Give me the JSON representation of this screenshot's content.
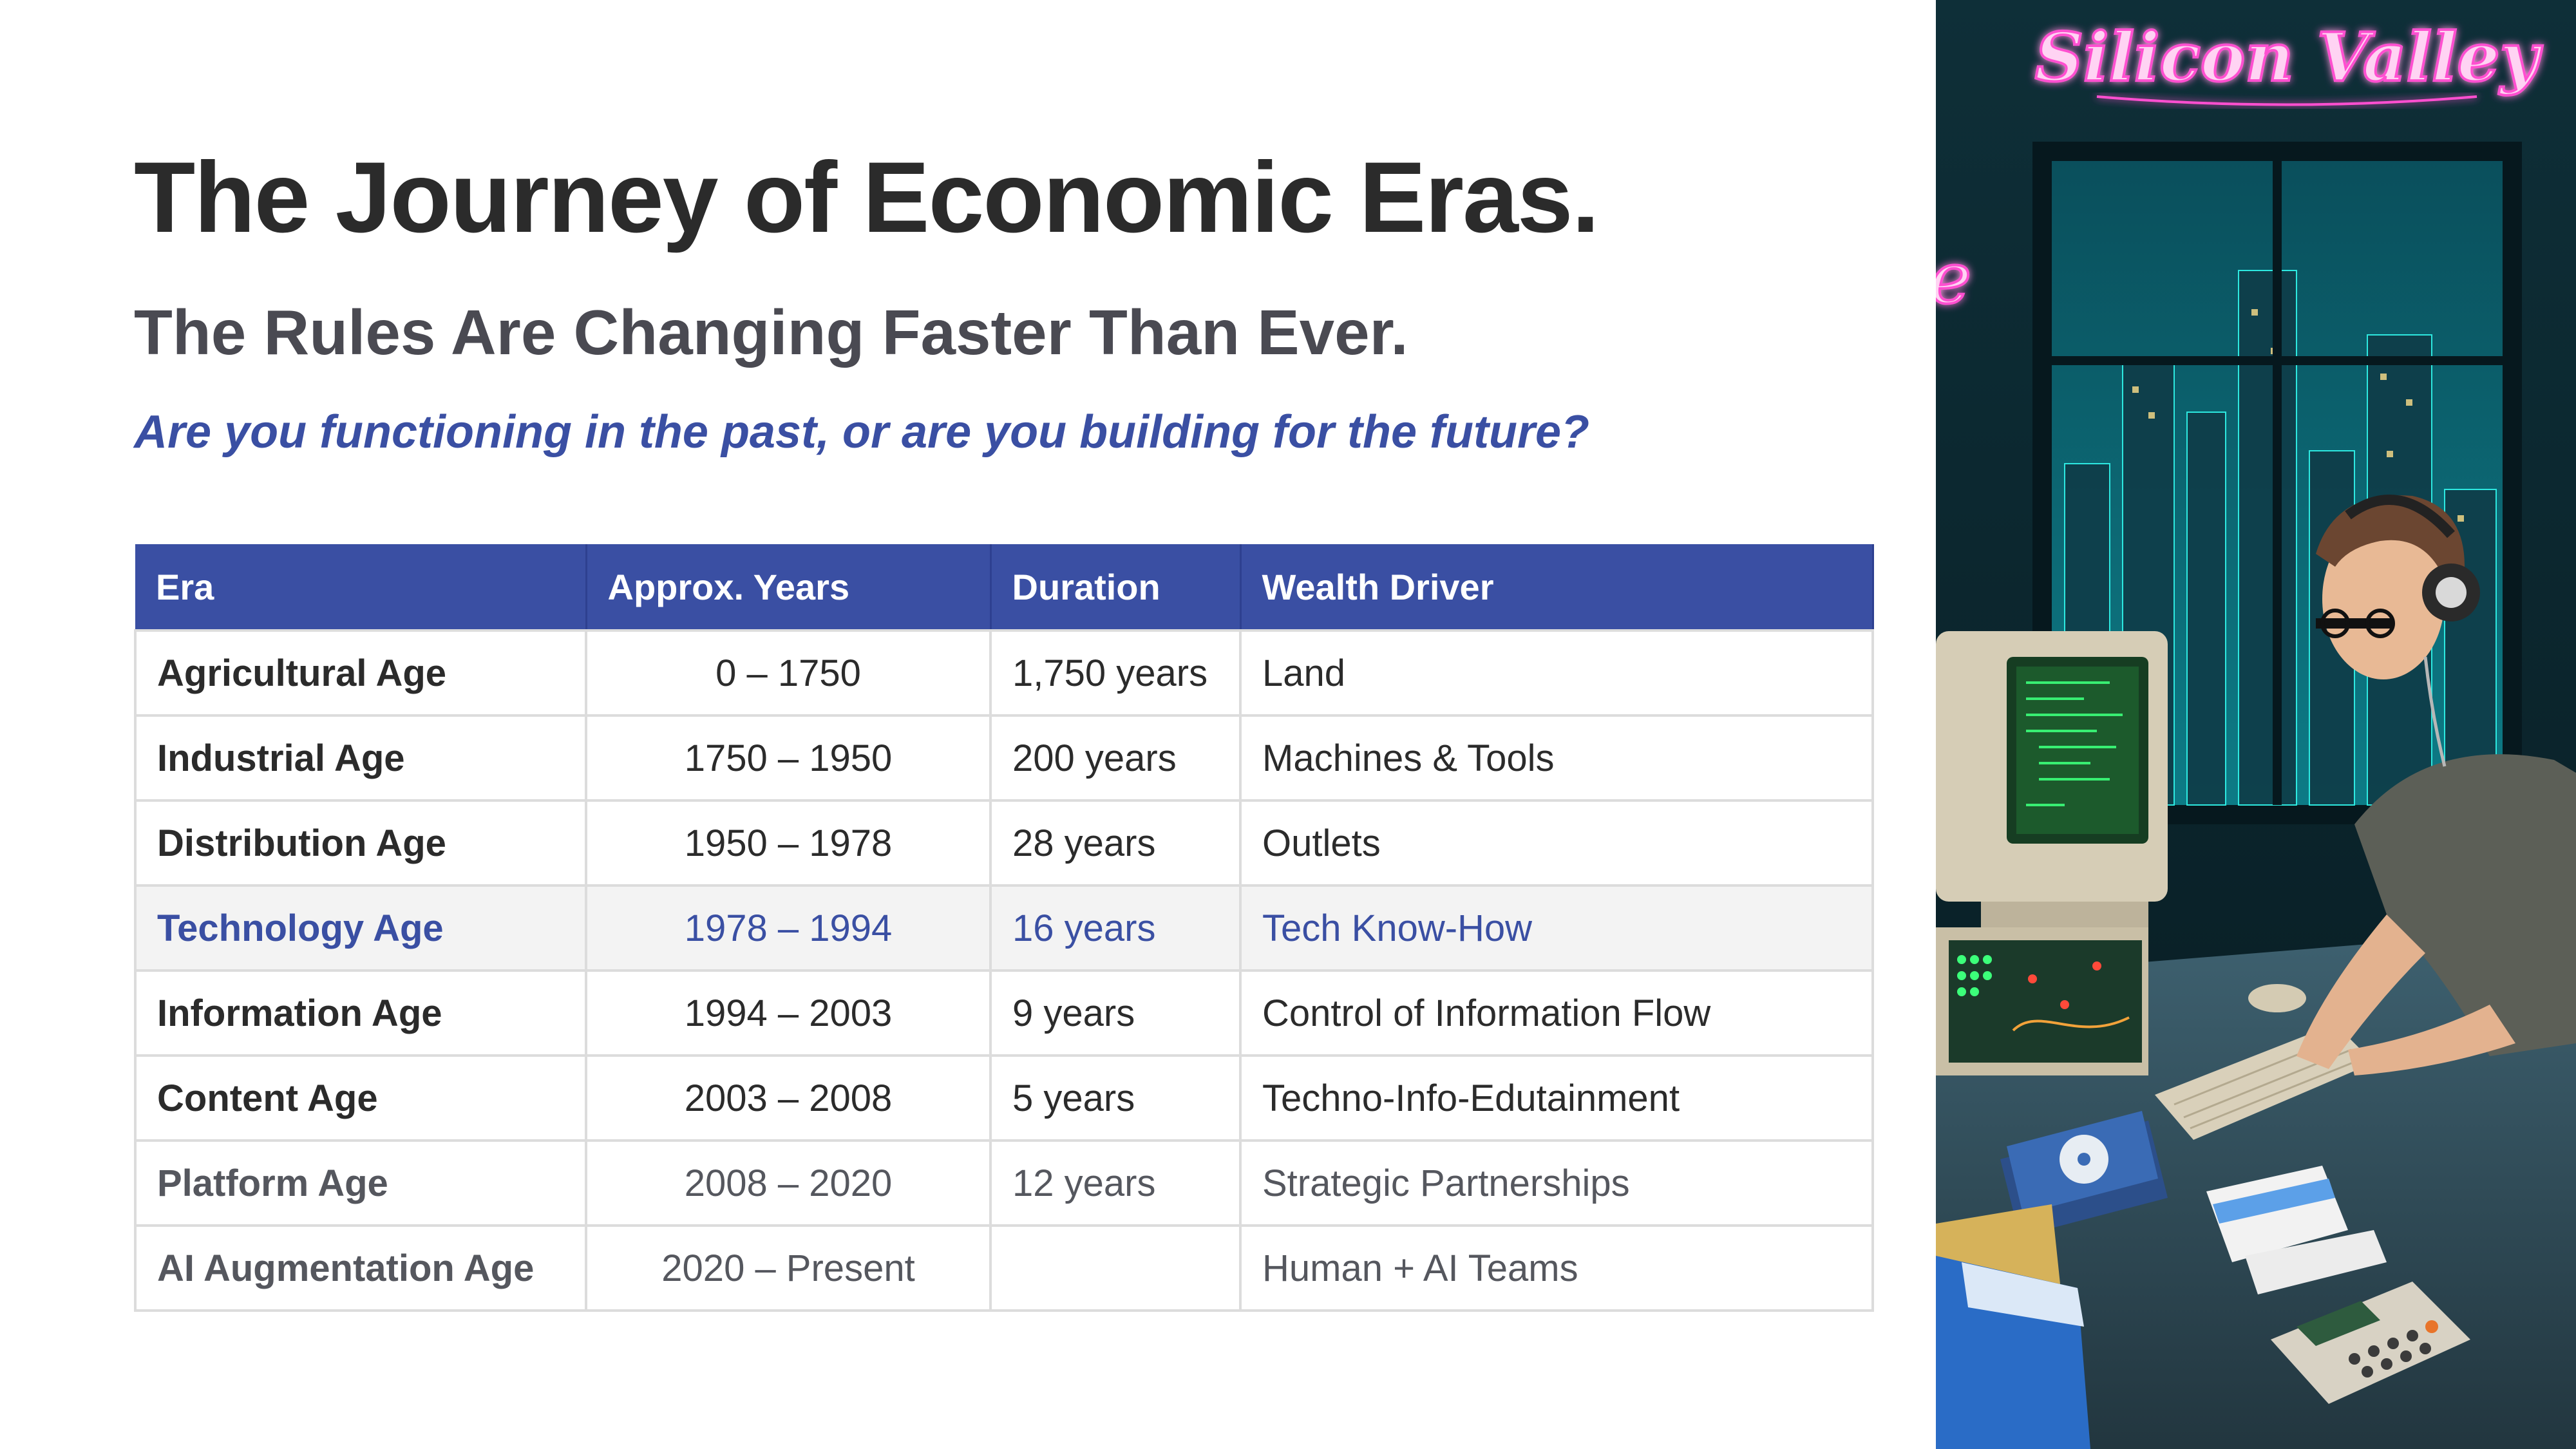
{
  "slide": {
    "title": "The Journey of Economic Eras.",
    "subtitle": "The Rules Are Changing Faster Than Ever.",
    "tagline": "Are you functioning in the past, or are you building for the future?"
  },
  "table": {
    "headers": [
      "Era",
      "Approx.  Years",
      "Duration",
      "Wealth  Driver"
    ],
    "rows": [
      {
        "era": "Agricultural Age",
        "years": "0 – 1750",
        "duration": "1,750 years",
        "driver": "Land"
      },
      {
        "era": "Industrial Age",
        "years": "1750 – 1950",
        "duration": "200 years",
        "driver": "Machines & Tools"
      },
      {
        "era": "Distribution Age",
        "years": "1950 – 1978",
        "duration": "28 years",
        "driver": "Outlets"
      },
      {
        "era": "Technology Age",
        "years": "1978 – 1994",
        "duration": "16 years",
        "driver": "Tech Know-How"
      },
      {
        "era": "Information Age",
        "years": "1994 – 2003",
        "duration": "9 years",
        "driver": "Control of Information Flow"
      },
      {
        "era": "Content Age",
        "years": "2003 – 2008",
        "duration": "5 years",
        "driver": "Techno-Info-Edutainment"
      },
      {
        "era": "Platform Age",
        "years": "2008 – 2020",
        "duration": "12 years",
        "driver": "Strategic Partnerships"
      },
      {
        "era": "AI Augmentation Age",
        "years": "2020 – Present",
        "duration": "",
        "driver": "Human + AI Teams"
      }
    ]
  },
  "illustration": {
    "neon_sign": "Silicon Valley",
    "colors": {
      "accent": "#3a4fa3",
      "neon": "#ff5fd2",
      "terminal": "#3cff7a"
    }
  }
}
